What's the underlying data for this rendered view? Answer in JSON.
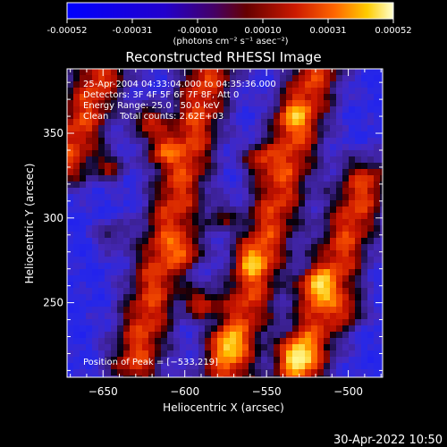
{
  "colorbar": {
    "ticks": [
      "-0.00052",
      "-0.00031",
      "-0.00010",
      "0.00010",
      "0.00031",
      "0.00052"
    ],
    "units_label": "(photons cm⁻² s⁻¹ asec⁻²)"
  },
  "chart_data": {
    "type": "heatmap",
    "title": "Reconstructed RHESSI Image",
    "xlabel": "Heliocentric X (arcsec)",
    "ylabel": "Heliocentric Y (arcsec)",
    "xlim": [
      -672,
      -479
    ],
    "ylim": [
      206,
      388
    ],
    "x_ticks": [
      -650,
      -600,
      -550,
      -500
    ],
    "y_ticks": [
      250,
      300,
      350
    ],
    "x_tick_labels": [
      "−650",
      "−600",
      "−550",
      "−500"
    ],
    "y_tick_labels": [
      "250",
      "300",
      "350"
    ],
    "annotations": [
      "25-Apr-2004 04:33:04.000 to 04:35:36.000",
      "Detectors: 3F 4F 5F 6F 7F 8F, Att 0",
      "Energy Range: 25.0 - 50.0 keV",
      "Clean    Total counts: 2.62E+03"
    ],
    "peak_label": "Position of Peak = [−533,219]",
    "peak_position": [
      -533,
      219
    ],
    "bands": [
      {
        "x0": -650,
        "y0": 388,
        "x1": -672,
        "y1": 335
      },
      {
        "x0": -585,
        "y0": 388,
        "x1": -630,
        "y1": 215
      },
      {
        "x0": -520,
        "y0": 388,
        "x1": -575,
        "y1": 206
      },
      {
        "x0": -490,
        "y0": 320,
        "x1": -530,
        "y1": 206
      }
    ],
    "hotspots": [
      {
        "x": -623,
        "y": 357,
        "v": 1.0
      },
      {
        "x": -615,
        "y": 340,
        "v": 0.8
      },
      {
        "x": -645,
        "y": 330,
        "v": 0.7
      },
      {
        "x": -645,
        "y": 290,
        "v": 0.55
      },
      {
        "x": -598,
        "y": 280,
        "v": 0.7
      },
      {
        "x": -590,
        "y": 250,
        "v": 0.95
      },
      {
        "x": -578,
        "y": 300,
        "v": 0.6
      },
      {
        "x": -555,
        "y": 335,
        "v": 0.75
      },
      {
        "x": -535,
        "y": 360,
        "v": 0.55
      },
      {
        "x": -520,
        "y": 260,
        "v": 0.85
      },
      {
        "x": -532,
        "y": 219,
        "v": 1.0
      },
      {
        "x": -575,
        "y": 225,
        "v": 0.75
      },
      {
        "x": -498,
        "y": 245,
        "v": 0.6
      },
      {
        "x": -560,
        "y": 275,
        "v": 0.6
      }
    ]
  },
  "footer": {
    "timestamp": "30-Apr-2022 10:50"
  },
  "colors": {
    "background": "#000000",
    "trough": "#3b1ea8",
    "deep": "#1f1cf0",
    "ridge": "#cc1a00",
    "peak": "#ffff80"
  }
}
